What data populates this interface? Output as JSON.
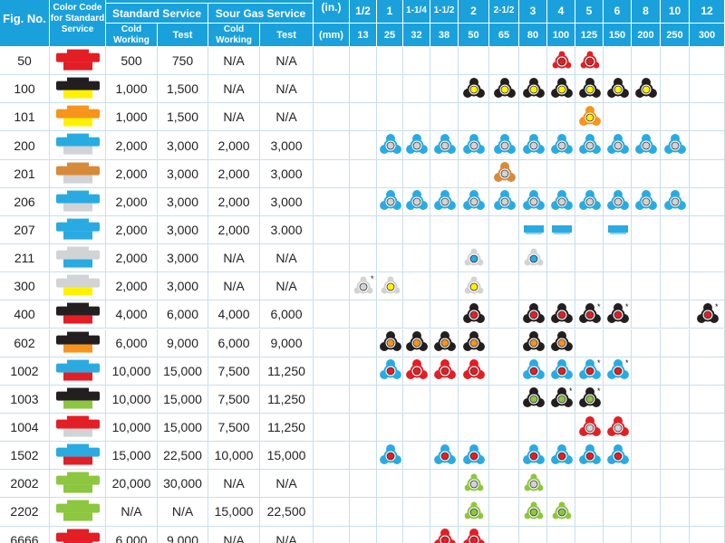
{
  "header": {
    "fig_no": "Fig. No.",
    "color_code": "Color Code for Standard Service",
    "standard_service": "Standard Service",
    "sour_gas_service": "Sour Gas Service",
    "cold_working": "Cold Working",
    "test": "Test",
    "in_label": "(in.)",
    "mm_label": "(mm)",
    "sizes_in": [
      "1/2",
      "1",
      "1-1/4",
      "1-1/2",
      "2",
      "2-1/2",
      "3",
      "4",
      "5",
      "6",
      "8",
      "10",
      "12"
    ],
    "sizes_mm": [
      "13",
      "25",
      "32",
      "38",
      "50",
      "65",
      "80",
      "100",
      "125",
      "150",
      "200",
      "250",
      "300"
    ]
  },
  "rows": [
    {
      "fig": "50",
      "std_cold": "500",
      "std_test": "750",
      "sour_cold": "N/A",
      "sour_test": "N/A",
      "color": {
        "top": "#e31e25",
        "bottom": "#e31e25"
      },
      "icons": [
        {
          "col": 7,
          "shape": "nut",
          "color": "#e31e25"
        },
        {
          "col": 8,
          "shape": "nut",
          "color": "#e31e25"
        }
      ]
    },
    {
      "fig": "100",
      "std_cold": "1,000",
      "std_test": "1,500",
      "sour_cold": "N/A",
      "sour_test": "N/A",
      "color": {
        "top": "#231f20",
        "bottom": "#fff200"
      },
      "icons": [
        {
          "col": 4,
          "shape": "wing",
          "color": "#231f20",
          "center": "#fff200"
        },
        {
          "col": 5,
          "shape": "wing",
          "color": "#231f20",
          "center": "#fff200"
        },
        {
          "col": 6,
          "shape": "wing",
          "color": "#231f20",
          "center": "#fff200"
        },
        {
          "col": 7,
          "shape": "wing",
          "color": "#231f20",
          "center": "#fff200"
        },
        {
          "col": 8,
          "shape": "wing",
          "color": "#231f20",
          "center": "#fff200"
        },
        {
          "col": 9,
          "shape": "wing",
          "color": "#231f20",
          "center": "#fff200"
        },
        {
          "col": 10,
          "shape": "wing",
          "color": "#231f20",
          "center": "#fff200"
        }
      ]
    },
    {
      "fig": "101",
      "std_cold": "1,000",
      "std_test": "1,500",
      "sour_cold": "N/A",
      "sour_test": "N/A",
      "color": {
        "top": "#f7941d",
        "bottom": "#fff200"
      },
      "icons": [
        {
          "col": 8,
          "shape": "wing",
          "color": "#f7941d",
          "center": "#fff200"
        }
      ]
    },
    {
      "fig": "200",
      "std_cold": "2,000",
      "std_test": "3,000",
      "sour_cold": "2,000",
      "sour_test": "3,000",
      "color": {
        "top": "#29abe2",
        "bottom": "#d1d3d4"
      },
      "icons": [
        {
          "col": 1,
          "shape": "wing",
          "color": "#29abe2",
          "center": "#d1d3d4"
        },
        {
          "col": 2,
          "shape": "wing",
          "color": "#29abe2",
          "center": "#d1d3d4"
        },
        {
          "col": 3,
          "shape": "wing",
          "color": "#29abe2",
          "center": "#d1d3d4"
        },
        {
          "col": 4,
          "shape": "wing",
          "color": "#29abe2",
          "center": "#d1d3d4"
        },
        {
          "col": 5,
          "shape": "wing",
          "color": "#29abe2",
          "center": "#d1d3d4"
        },
        {
          "col": 6,
          "shape": "wing",
          "color": "#29abe2",
          "center": "#d1d3d4"
        },
        {
          "col": 7,
          "shape": "wing",
          "color": "#29abe2",
          "center": "#d1d3d4"
        },
        {
          "col": 8,
          "shape": "wing",
          "color": "#29abe2",
          "center": "#d1d3d4"
        },
        {
          "col": 9,
          "shape": "wing",
          "color": "#29abe2",
          "center": "#d1d3d4"
        },
        {
          "col": 10,
          "shape": "wing",
          "color": "#29abe2",
          "center": "#d1d3d4"
        },
        {
          "col": 11,
          "shape": "wing",
          "color": "#29abe2",
          "center": "#d1d3d4"
        }
      ]
    },
    {
      "fig": "201",
      "std_cold": "2,000",
      "std_test": "3,000",
      "sour_cold": "2,000",
      "sour_test": "3,000",
      "color": {
        "top": "#d68a3a",
        "bottom": "#d1d3d4"
      },
      "icons": [
        {
          "col": 5,
          "shape": "wing",
          "color": "#d68a3a",
          "center": "#d1d3d4"
        }
      ]
    },
    {
      "fig": "206",
      "std_cold": "2,000",
      "std_test": "3,000",
      "sour_cold": "2,000",
      "sour_test": "3,000",
      "color": {
        "top": "#29abe2",
        "bottom": "#d1d3d4"
      },
      "icons": [
        {
          "col": 1,
          "shape": "wing",
          "color": "#29abe2",
          "center": "#d1d3d4"
        },
        {
          "col": 2,
          "shape": "wing",
          "color": "#29abe2",
          "center": "#d1d3d4"
        },
        {
          "col": 3,
          "shape": "wing",
          "color": "#29abe2",
          "center": "#d1d3d4"
        },
        {
          "col": 4,
          "shape": "wing",
          "color": "#29abe2",
          "center": "#d1d3d4"
        },
        {
          "col": 5,
          "shape": "wing",
          "color": "#29abe2",
          "center": "#d1d3d4"
        },
        {
          "col": 6,
          "shape": "wing",
          "color": "#29abe2",
          "center": "#d1d3d4"
        },
        {
          "col": 7,
          "shape": "wing",
          "color": "#29abe2",
          "center": "#d1d3d4"
        },
        {
          "col": 8,
          "shape": "wing",
          "color": "#29abe2",
          "center": "#d1d3d4"
        },
        {
          "col": 9,
          "shape": "wing",
          "color": "#29abe2",
          "center": "#d1d3d4"
        },
        {
          "col": 10,
          "shape": "wing",
          "color": "#29abe2",
          "center": "#d1d3d4"
        },
        {
          "col": 11,
          "shape": "wing",
          "color": "#29abe2",
          "center": "#d1d3d4"
        }
      ]
    },
    {
      "fig": "207",
      "std_cold": "2,000",
      "std_test": "3,000",
      "sour_cold": "2,000",
      "sour_test": "3.000",
      "color": {
        "top": "#29abe2",
        "bottom": "#29abe2"
      },
      "icons": [
        {
          "col": 6,
          "shape": "block",
          "color": "#29abe2"
        },
        {
          "col": 7,
          "shape": "block",
          "color": "#29abe2"
        },
        {
          "col": 9,
          "shape": "block",
          "color": "#29abe2"
        }
      ]
    },
    {
      "fig": "211",
      "std_cold": "2,000",
      "std_test": "3,000",
      "sour_cold": "N/A",
      "sour_test": "N/A",
      "color": {
        "top": "#d1d3d4",
        "bottom": "#29abe2"
      },
      "icons": [
        {
          "col": 4,
          "shape": "nut",
          "color": "#d1d3d4",
          "center": "#29abe2"
        },
        {
          "col": 6,
          "shape": "nut",
          "color": "#d1d3d4",
          "center": "#29abe2"
        }
      ]
    },
    {
      "fig": "300",
      "std_cold": "2,000",
      "std_test": "3,000",
      "sour_cold": "N/A",
      "sour_test": "N/A",
      "color": {
        "top": "#d1d3d4",
        "bottom": "#fff200"
      },
      "icons": [
        {
          "col": 0,
          "shape": "nut",
          "color": "#d1d3d4",
          "center": "#d1d3d4",
          "star": true
        },
        {
          "col": 1,
          "shape": "nut",
          "color": "#d1d3d4",
          "center": "#fff200"
        },
        {
          "col": 4,
          "shape": "nut",
          "color": "#d1d3d4",
          "center": "#fff200"
        }
      ]
    },
    {
      "fig": "400",
      "std_cold": "4,000",
      "std_test": "6,000",
      "sour_cold": "4,000",
      "sour_test": "6,000",
      "color": {
        "top": "#231f20",
        "bottom": "#e31e25"
      },
      "icons": [
        {
          "col": 4,
          "shape": "wing",
          "color": "#231f20",
          "center": "#e31e25"
        },
        {
          "col": 6,
          "shape": "wing",
          "color": "#231f20",
          "center": "#e31e25"
        },
        {
          "col": 7,
          "shape": "wing",
          "color": "#231f20",
          "center": "#e31e25"
        },
        {
          "col": 8,
          "shape": "wing",
          "color": "#231f20",
          "center": "#e31e25",
          "star": true
        },
        {
          "col": 9,
          "shape": "wing",
          "color": "#231f20",
          "center": "#e31e25",
          "star": true
        },
        {
          "col": 12,
          "shape": "wing",
          "color": "#231f20",
          "center": "#e31e25",
          "star": true
        }
      ]
    },
    {
      "fig": "602",
      "std_cold": "6,000",
      "std_test": "9,000",
      "sour_cold": "6,000",
      "sour_test": "9,000",
      "color": {
        "top": "#231f20",
        "bottom": "#f7941d"
      },
      "icons": [
        {
          "col": 1,
          "shape": "wing",
          "color": "#231f20",
          "center": "#f7941d"
        },
        {
          "col": 2,
          "shape": "wing",
          "color": "#231f20",
          "center": "#f7941d"
        },
        {
          "col": 3,
          "shape": "wing",
          "color": "#231f20",
          "center": "#f7941d"
        },
        {
          "col": 4,
          "shape": "wing",
          "color": "#231f20",
          "center": "#f7941d"
        },
        {
          "col": 6,
          "shape": "wing",
          "color": "#231f20",
          "center": "#f7941d"
        },
        {
          "col": 7,
          "shape": "wing",
          "color": "#231f20",
          "center": "#f7941d"
        }
      ]
    },
    {
      "fig": "1002",
      "std_cold": "10,000",
      "std_test": "15,000",
      "sour_cold": "7,500",
      "sour_test": "11,250",
      "color": {
        "top": "#29abe2",
        "bottom": "#e31e25"
      },
      "icons": [
        {
          "col": 1,
          "shape": "wing",
          "color": "#29abe2",
          "center": "#e31e25"
        },
        {
          "col": 2,
          "shape": "wing",
          "color": "#e31e25",
          "center": "#e31e25"
        },
        {
          "col": 3,
          "shape": "wing",
          "color": "#e31e25",
          "center": "#e31e25"
        },
        {
          "col": 4,
          "shape": "wing",
          "color": "#e31e25",
          "center": "#e31e25"
        },
        {
          "col": 6,
          "shape": "wing",
          "color": "#29abe2",
          "center": "#e31e25"
        },
        {
          "col": 7,
          "shape": "wing",
          "color": "#29abe2",
          "center": "#e31e25"
        },
        {
          "col": 8,
          "shape": "wing",
          "color": "#29abe2",
          "center": "#e31e25",
          "star": true
        },
        {
          "col": 9,
          "shape": "wing",
          "color": "#29abe2",
          "center": "#e31e25",
          "star": true
        }
      ]
    },
    {
      "fig": "1003",
      "std_cold": "10,000",
      "std_test": "15,000",
      "sour_cold": "7,500",
      "sour_test": "11,250",
      "color": {
        "top": "#231f20",
        "bottom": "#8dc63f"
      },
      "icons": [
        {
          "col": 6,
          "shape": "wing",
          "color": "#231f20",
          "center": "#8dc63f"
        },
        {
          "col": 7,
          "shape": "wing",
          "color": "#231f20",
          "center": "#8dc63f",
          "star": true
        },
        {
          "col": 8,
          "shape": "wing",
          "color": "#231f20",
          "center": "#8dc63f",
          "star": true
        }
      ]
    },
    {
      "fig": "1004",
      "std_cold": "10,000",
      "std_test": "15,000",
      "sour_cold": "7,500",
      "sour_test": "11,250",
      "color": {
        "top": "#e31e25",
        "bottom": "#d1d3d4"
      },
      "icons": [
        {
          "col": 8,
          "shape": "wing",
          "color": "#e31e25",
          "center": "#d1d3d4"
        },
        {
          "col": 9,
          "shape": "wing",
          "color": "#e31e25",
          "center": "#d1d3d4"
        }
      ]
    },
    {
      "fig": "1502",
      "std_cold": "15,000",
      "std_test": "22,500",
      "sour_cold": "10,000",
      "sour_test": "15,000",
      "color": {
        "top": "#29abe2",
        "bottom": "#e31e25"
      },
      "icons": [
        {
          "col": 1,
          "shape": "wing",
          "color": "#29abe2",
          "center": "#e31e25"
        },
        {
          "col": 3,
          "shape": "wing",
          "color": "#29abe2",
          "center": "#e31e25"
        },
        {
          "col": 4,
          "shape": "wing",
          "color": "#29abe2",
          "center": "#e31e25"
        },
        {
          "col": 6,
          "shape": "wing",
          "color": "#29abe2",
          "center": "#e31e25"
        },
        {
          "col": 7,
          "shape": "wing",
          "color": "#29abe2",
          "center": "#e31e25"
        },
        {
          "col": 8,
          "shape": "wing",
          "color": "#29abe2",
          "center": "#e31e25"
        },
        {
          "col": 9,
          "shape": "wing",
          "color": "#29abe2",
          "center": "#e31e25"
        }
      ]
    },
    {
      "fig": "2002",
      "std_cold": "20,000",
      "std_test": "30,000",
      "sour_cold": "N/A",
      "sour_test": "N/A",
      "color": {
        "top": "#8dc63f",
        "bottom": "#8dc63f"
      },
      "icons": [
        {
          "col": 4,
          "shape": "nut",
          "color": "#8dc63f",
          "center": "#d1d3d4"
        },
        {
          "col": 6,
          "shape": "nut",
          "color": "#8dc63f",
          "center": "#d1d3d4"
        }
      ]
    },
    {
      "fig": "2202",
      "std_cold": "N/A",
      "std_test": "N/A",
      "sour_cold": "15,000",
      "sour_test": "22,500",
      "color": {
        "top": "#8dc63f",
        "bottom": "#8dc63f"
      },
      "icons": [
        {
          "col": 4,
          "shape": "nut",
          "color": "#8dc63f",
          "center": "#8dc63f"
        },
        {
          "col": 6,
          "shape": "nut",
          "color": "#8dc63f",
          "center": "#8dc63f"
        },
        {
          "col": 7,
          "shape": "nut",
          "color": "#8dc63f",
          "center": "#8dc63f"
        }
      ]
    },
    {
      "fig": "6666",
      "std_cold": "6,000",
      "std_test": "9,000",
      "sour_cold": "N/A",
      "sour_test": "N/A",
      "color": {
        "top": "#e31e25",
        "bottom": "#e31e25"
      },
      "icons": [
        {
          "col": 3,
          "shape": "wing",
          "color": "#e31e25",
          "center": "#e31e25"
        },
        {
          "col": 4,
          "shape": "wing",
          "color": "#e31e25",
          "center": "#e31e25"
        }
      ]
    }
  ]
}
